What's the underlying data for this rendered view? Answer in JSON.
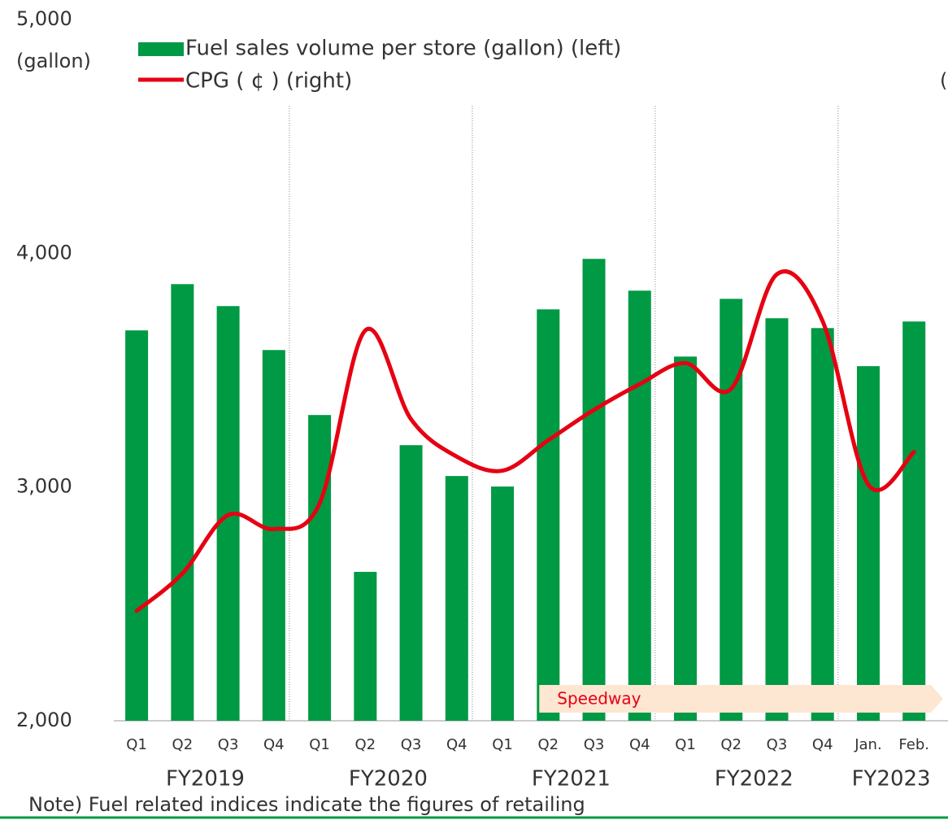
{
  "chart_data": {
    "type": "bar_line",
    "y_label": "(gallon)",
    "y2_label": "(",
    "categories": [
      "Q1",
      "Q2",
      "Q3",
      "Q4",
      "Q1",
      "Q2",
      "Q3",
      "Q4",
      "Q1",
      "Q2",
      "Q3",
      "Q4",
      "Q1",
      "Q2",
      "Q3",
      "Q4",
      "Jan.",
      "Feb."
    ],
    "groups": [
      {
        "label": "FY2019",
        "count": 4
      },
      {
        "label": "FY2020",
        "count": 4
      },
      {
        "label": "FY2021",
        "count": 4
      },
      {
        "label": "FY2022",
        "count": 4
      },
      {
        "label": "FY2023",
        "count": 2
      }
    ],
    "series": [
      {
        "name": "Fuel sales volume per store (gallon) (left)",
        "color": "#009944",
        "type": "bar",
        "values": [
          3670,
          3868,
          3774,
          3586,
          3308,
          2637,
          3179,
          3047,
          3002,
          3760,
          3976,
          3840,
          3558,
          3805,
          3722,
          3680,
          3517,
          3708
        ]
      },
      {
        "name": "CPG ( ¢ ) (right)",
        "color": "#e60012",
        "type": "line",
        "axis": "y2",
        "values": [
          24.7,
          26.3,
          28.8,
          28.2,
          29.3,
          36.7,
          32.9,
          31.3,
          30.7,
          32.0,
          33.3,
          34.4,
          35.3,
          34.2,
          39.1,
          37.1,
          30.1,
          31.5
        ]
      }
    ],
    "ylim": [
      2000,
      5000
    ],
    "yticks": [
      {
        "value": 2000,
        "label": "2,000"
      },
      {
        "value": 3000,
        "label": "3,000"
      },
      {
        "value": 4000,
        "label": "4,000"
      },
      {
        "value": 5000,
        "label": "5,000"
      }
    ],
    "y2lim": [
      20,
      50
    ],
    "annotation": {
      "text": "Speedway",
      "from": 9,
      "to": 17
    },
    "note": "Note) Fuel related indices indicate the figures of retailing"
  }
}
